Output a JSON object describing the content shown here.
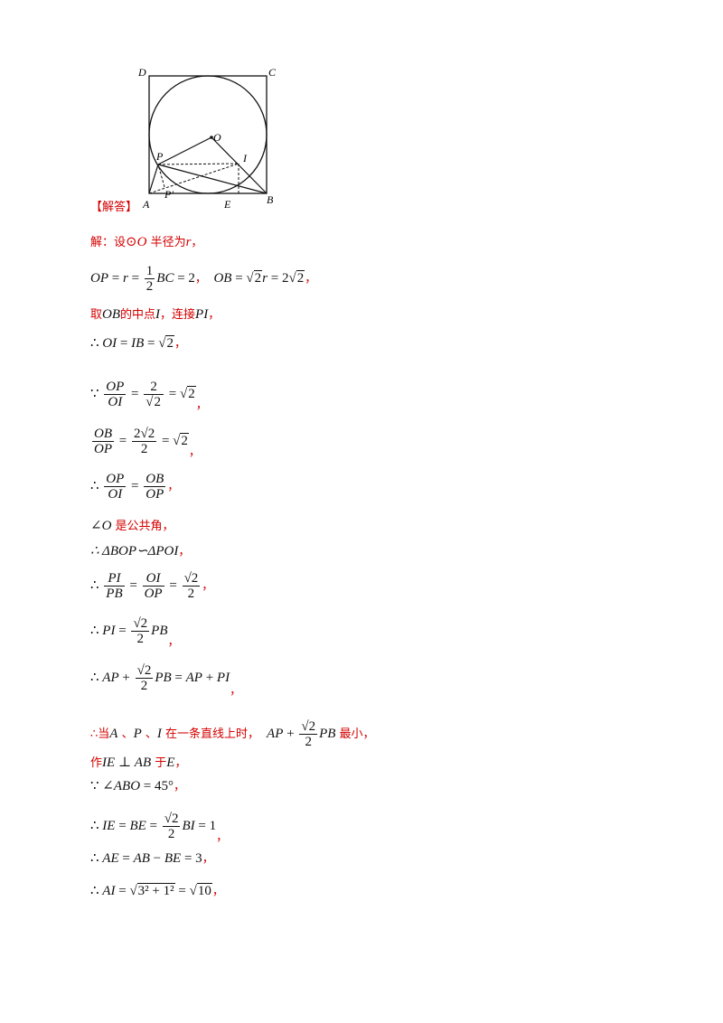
{
  "figure": {
    "labels": {
      "D": "D",
      "C": "C",
      "O": "O",
      "P": "P",
      "I": "I",
      "A": "A",
      "P1": "P'",
      "E": "E",
      "B": "B"
    }
  },
  "heading": "【解答】",
  "sol": {
    "l1a": "解：设",
    "l1b": "⊙",
    "l1c": "O",
    "l1d": " 半径为",
    "l1e": "r",
    "l1f": "，",
    "l2a": "OP",
    "l2b": " = ",
    "l2c": "r",
    "l2d": " = ",
    "l2e": "1",
    "l2f": "2",
    "l2g": "BC",
    "l2h": " = 2",
    "l2i": "，",
    "l2j": "OB",
    "l2k": " = ",
    "l2l": "√",
    "l2m": "2",
    "l2n": "r",
    "l2o": " = 2",
    "l2p": "√",
    "l2q": "2",
    "l2r": "，",
    "l3a": "取",
    "l3b": "OB",
    "l3c": "的中点",
    "l3d": "I",
    "l3e": "，连接",
    "l3f": "PI",
    "l3g": "，",
    "l4a": "∴ ",
    "l4b": "OI",
    "l4c": " = ",
    "l4d": "IB",
    "l4e": " = ",
    "l4f": "√",
    "l4g": "2",
    "l4h": "，",
    "l5a": "∵ ",
    "l5b": "OP",
    "l5c": "OI",
    "l5d": " = ",
    "l5e": "2",
    "l5f": "√",
    "l5g": "2",
    "l5h": " = ",
    "l5i": "√",
    "l5j": "2",
    "l5k": "，",
    "l6a": "OB",
    "l6b": "OP",
    "l6c": " = ",
    "l6d": "2√2",
    "l6e": "2",
    "l6f": " = ",
    "l6g": "√",
    "l6h": "2",
    "l6i": "，",
    "l7a": "∴ ",
    "l7b": "OP",
    "l7c": "OI",
    "l7d": " = ",
    "l7e": "OB",
    "l7f": "OP",
    "l7g": "，",
    "l8a": "∠",
    "l8b": "O",
    "l8c": " 是公共角，",
    "l9a": "∴ ΔBOP∽ΔPOI",
    "l9b": "，",
    "l10a": "∴ ",
    "l10b": "PI",
    "l10c": "PB",
    "l10d": " = ",
    "l10e": "OI",
    "l10f": "OP",
    "l10g": " = ",
    "l10h": "√2",
    "l10i": "2",
    "l10j": "，",
    "l11a": "∴ ",
    "l11b": "PI",
    "l11c": " = ",
    "l11d": "√2",
    "l11e": "2",
    "l11f": "PB",
    "l11g": "，",
    "l12a": "∴ ",
    "l12b": "AP",
    "l12c": " + ",
    "l12d": "√2",
    "l12e": "2",
    "l12f": "PB",
    "l12g": " = ",
    "l12h": "AP",
    "l12i": " + ",
    "l12j": "PI",
    "l12k": "，",
    "l13a": "∴当",
    "l13b": "A",
    "l13c": " 、",
    "l13d": "P",
    "l13e": " 、",
    "l13f": "I",
    "l13g": " 在一条直线上时，",
    "l13h": "AP",
    "l13i": " + ",
    "l13j": "√2",
    "l13k": "2",
    "l13l": "PB",
    "l13m": " 最小，",
    "l14a": "作",
    "l14b": "IE",
    "l14c": " ⊥ ",
    "l14d": "AB",
    "l14e": " 于",
    "l14f": "E",
    "l14g": "，",
    "l15a": "∵ ∠",
    "l15b": "ABO",
    "l15c": " = 45°",
    "l15d": "，",
    "l16a": "∴ ",
    "l16b": "IE",
    "l16c": " = ",
    "l16d": "BE",
    "l16e": " = ",
    "l16f": "√2",
    "l16g": "2",
    "l16h": "BI",
    "l16i": " = 1",
    "l16j": "，",
    "l17a": "∴ ",
    "l17b": "AE",
    "l17c": " = ",
    "l17d": "AB",
    "l17e": " − ",
    "l17f": "BE",
    "l17g": " = 3",
    "l17h": "，",
    "l18a": "∴ ",
    "l18b": "AI",
    "l18c": " = ",
    "l18d": "√",
    "l18e": "3² + 1²",
    "l18f": " = ",
    "l18g": "√",
    "l18h": "10",
    "l18i": "，"
  }
}
